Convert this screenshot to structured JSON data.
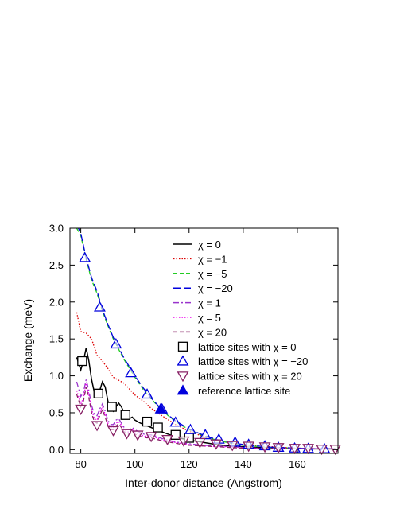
{
  "chart_data": {
    "type": "line",
    "xlabel": "Inter-donor distance (Angstrom)",
    "ylabel": "Exchange (meV)",
    "xlim": [
      76,
      175
    ],
    "ylim": [
      -0.05,
      3.0
    ],
    "xticks": [
      80,
      100,
      120,
      140,
      160
    ],
    "yticks": [
      0.0,
      0.5,
      1.0,
      1.5,
      2.0,
      2.5,
      3.0
    ],
    "ytick_labels": [
      "0.0",
      "0.5",
      "1.0",
      "1.5",
      "2.0",
      "2.5",
      "3.0"
    ],
    "grid": false,
    "legend_position": "top-right",
    "series": [
      {
        "name": "χ = 0",
        "style": "solid",
        "color": "#000000",
        "x": [
          78.5,
          80,
          81,
          82,
          83,
          84,
          85,
          86,
          87,
          88,
          89,
          90,
          91,
          92,
          93,
          94,
          95,
          96,
          97,
          98,
          99,
          100,
          102,
          104,
          106,
          108,
          110,
          113,
          116,
          120,
          125,
          130,
          135,
          140,
          145,
          150,
          155,
          160,
          165,
          170,
          174
        ],
        "y": [
          1.25,
          1.08,
          1.2,
          1.38,
          1.2,
          0.95,
          0.78,
          0.72,
          0.8,
          0.92,
          0.85,
          0.66,
          0.56,
          0.52,
          0.58,
          0.63,
          0.58,
          0.5,
          0.45,
          0.42,
          0.44,
          0.4,
          0.36,
          0.33,
          0.3,
          0.27,
          0.24,
          0.2,
          0.16,
          0.13,
          0.1,
          0.07,
          0.05,
          0.04,
          0.03,
          0.025,
          0.02,
          0.015,
          0.01,
          0.01,
          0.01
        ]
      },
      {
        "name": "χ = −1",
        "style": "dotted",
        "color": "#dd0000",
        "x": [
          78.5,
          80,
          82,
          84,
          86,
          88,
          90,
          92,
          94,
          96,
          98,
          100,
          103,
          106,
          110,
          115,
          120,
          125,
          130,
          135,
          140,
          145,
          150,
          155,
          160,
          165,
          170,
          174
        ],
        "y": [
          1.86,
          1.6,
          1.58,
          1.5,
          1.28,
          1.2,
          1.1,
          0.98,
          0.94,
          0.9,
          0.82,
          0.74,
          0.66,
          0.56,
          0.46,
          0.34,
          0.25,
          0.18,
          0.13,
          0.09,
          0.07,
          0.05,
          0.04,
          0.03,
          0.02,
          0.015,
          0.01,
          0.01
        ]
      },
      {
        "name": "χ = −5",
        "style": "dashed",
        "color": "#22cc22",
        "x": [
          78.5,
          80,
          82,
          84,
          86,
          88,
          90,
          92,
          94,
          96,
          98,
          100,
          103,
          106,
          110,
          115,
          120,
          125,
          130,
          135,
          140,
          145,
          150,
          160,
          170,
          174
        ],
        "y": [
          3.0,
          2.9,
          2.58,
          2.3,
          2.12,
          1.88,
          1.68,
          1.5,
          1.36,
          1.22,
          1.1,
          0.98,
          0.82,
          0.69,
          0.53,
          0.38,
          0.27,
          0.19,
          0.13,
          0.09,
          0.06,
          0.045,
          0.03,
          0.02,
          0.01,
          0.01
        ]
      },
      {
        "name": "χ = −20",
        "style": "longdash",
        "color": "#0000dd",
        "x": [
          78.5,
          80,
          82,
          84,
          86,
          88,
          90,
          92,
          94,
          96,
          98,
          100,
          103,
          106,
          110,
          115,
          120,
          125,
          130,
          135,
          140,
          145,
          150,
          160,
          170,
          174
        ],
        "y": [
          3.05,
          2.93,
          2.6,
          2.33,
          2.15,
          1.9,
          1.7,
          1.52,
          1.38,
          1.24,
          1.12,
          1.0,
          0.84,
          0.7,
          0.54,
          0.39,
          0.28,
          0.2,
          0.14,
          0.1,
          0.07,
          0.05,
          0.035,
          0.02,
          0.01,
          0.01
        ]
      },
      {
        "name": "χ = 1",
        "style": "dashdot",
        "color": "#9933cc",
        "x": [
          78.5,
          80,
          81,
          82,
          83,
          84,
          85,
          86,
          87,
          88,
          89,
          90,
          91,
          92,
          93,
          94,
          95,
          96,
          97,
          98,
          99,
          100,
          102,
          104,
          106,
          108,
          110,
          113,
          116,
          120,
          125,
          130,
          135,
          140,
          145,
          150,
          160,
          170,
          174
        ],
        "y": [
          0.92,
          0.72,
          0.78,
          0.95,
          0.8,
          0.6,
          0.48,
          0.46,
          0.55,
          0.62,
          0.52,
          0.4,
          0.34,
          0.34,
          0.4,
          0.42,
          0.36,
          0.3,
          0.27,
          0.27,
          0.3,
          0.27,
          0.23,
          0.2,
          0.2,
          0.18,
          0.15,
          0.12,
          0.1,
          0.08,
          0.06,
          0.05,
          0.04,
          0.03,
          0.02,
          0.02,
          0.015,
          0.01,
          0.01
        ]
      },
      {
        "name": "χ = 5",
        "style": "dotted",
        "color": "#ee00ee",
        "x": [
          78.5,
          80,
          81,
          82,
          83,
          84,
          85,
          86,
          87,
          88,
          89,
          90,
          91,
          92,
          93,
          94,
          95,
          96,
          97,
          98,
          99,
          100,
          102,
          104,
          106,
          108,
          110,
          113,
          116,
          120,
          125,
          130,
          135,
          140,
          145,
          150,
          160,
          170,
          174
        ],
        "y": [
          0.8,
          0.62,
          0.7,
          0.9,
          0.75,
          0.55,
          0.42,
          0.4,
          0.5,
          0.58,
          0.48,
          0.36,
          0.3,
          0.3,
          0.36,
          0.38,
          0.33,
          0.27,
          0.24,
          0.24,
          0.27,
          0.24,
          0.2,
          0.18,
          0.18,
          0.16,
          0.13,
          0.11,
          0.09,
          0.07,
          0.05,
          0.04,
          0.035,
          0.025,
          0.02,
          0.015,
          0.01,
          0.01,
          0.01
        ]
      },
      {
        "name": "χ = 20",
        "style": "dashed",
        "color": "#882266",
        "x": [
          78.5,
          80,
          81,
          82,
          83,
          84,
          85,
          86,
          87,
          88,
          89,
          90,
          91,
          92,
          93,
          94,
          95,
          96,
          97,
          98,
          99,
          100,
          102,
          104,
          106,
          108,
          110,
          113,
          116,
          120,
          125,
          130,
          135,
          140,
          145,
          150,
          160,
          170,
          174
        ],
        "y": [
          0.75,
          0.58,
          0.66,
          0.85,
          0.7,
          0.5,
          0.38,
          0.36,
          0.46,
          0.54,
          0.44,
          0.33,
          0.27,
          0.27,
          0.32,
          0.35,
          0.3,
          0.24,
          0.21,
          0.21,
          0.24,
          0.21,
          0.18,
          0.16,
          0.16,
          0.14,
          0.12,
          0.1,
          0.08,
          0.06,
          0.05,
          0.04,
          0.03,
          0.02,
          0.015,
          0.01,
          0.01,
          0.01,
          0.01
        ]
      }
    ],
    "markers": [
      {
        "name": "lattice sites with χ = 0",
        "shape": "square",
        "color": "#000000",
        "x": [
          80.5,
          86.5,
          91.5,
          96.5,
          104.5,
          108.5,
          115,
          120
        ],
        "y": [
          1.2,
          0.76,
          0.58,
          0.47,
          0.38,
          0.3,
          0.2,
          0.16
        ]
      },
      {
        "name": "lattice sites with χ = −20",
        "shape": "triangle-up",
        "color": "#0000dd",
        "x": [
          81.5,
          87,
          93,
          98.5,
          104.5,
          110,
          115,
          120.5,
          126,
          131,
          137,
          142,
          148,
          153,
          159,
          164,
          170
        ],
        "y": [
          2.6,
          1.93,
          1.43,
          1.04,
          0.75,
          0.55,
          0.37,
          0.27,
          0.2,
          0.14,
          0.1,
          0.07,
          0.05,
          0.03,
          0.02,
          0.015,
          0.01
        ]
      },
      {
        "name": "lattice sites with χ = 20",
        "shape": "triangle-down",
        "color": "#882266",
        "x": [
          80,
          86,
          92,
          97,
          101,
          106,
          112,
          118,
          124,
          130,
          136,
          142,
          148,
          153,
          159,
          164,
          169,
          174
        ],
        "y": [
          0.55,
          0.33,
          0.26,
          0.22,
          0.2,
          0.18,
          0.14,
          0.12,
          0.1,
          0.08,
          0.06,
          0.05,
          0.04,
          0.03,
          0.02,
          0.02,
          0.01,
          0.01
        ]
      },
      {
        "name": "reference lattice site",
        "shape": "triangle-up-filled",
        "color": "#0000dd",
        "x": [
          109.5
        ],
        "y": [
          0.55
        ]
      }
    ]
  }
}
